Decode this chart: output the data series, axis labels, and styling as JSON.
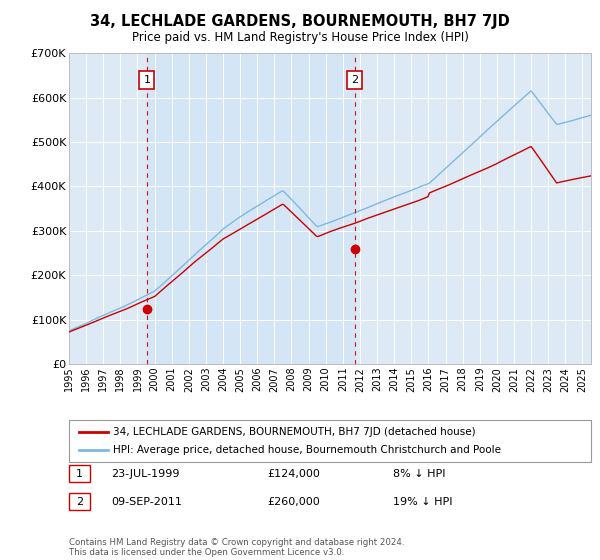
{
  "title": "34, LECHLADE GARDENS, BOURNEMOUTH, BH7 7JD",
  "subtitle": "Price paid vs. HM Land Registry's House Price Index (HPI)",
  "legend_line1": "34, LECHLADE GARDENS, BOURNEMOUTH, BH7 7JD (detached house)",
  "legend_line2": "HPI: Average price, detached house, Bournemouth Christchurch and Poole",
  "annotation1_label": "1",
  "annotation1_date": "23-JUL-1999",
  "annotation1_price": "£124,000",
  "annotation1_hpi": "8% ↓ HPI",
  "annotation2_label": "2",
  "annotation2_date": "09-SEP-2011",
  "annotation2_price": "£260,000",
  "annotation2_hpi": "19% ↓ HPI",
  "footer": "Contains HM Land Registry data © Crown copyright and database right 2024.\nThis data is licensed under the Open Government Licence v3.0.",
  "hpi_color": "#7eb8e0",
  "price_color": "#cc0000",
  "dashed_line_color": "#cc0000",
  "background_color": "#ddeaf5",
  "shade_color": "#ccdff0",
  "annotation_box_color": "#cc0000",
  "ylim": [
    0,
    700000
  ],
  "yticks": [
    0,
    100000,
    200000,
    300000,
    400000,
    500000,
    600000,
    700000
  ],
  "sale1_year": 1999.55,
  "sale1_price": 124000,
  "sale2_year": 2011.69,
  "sale2_price": 260000,
  "xmin": 1995,
  "xmax": 2025.5
}
